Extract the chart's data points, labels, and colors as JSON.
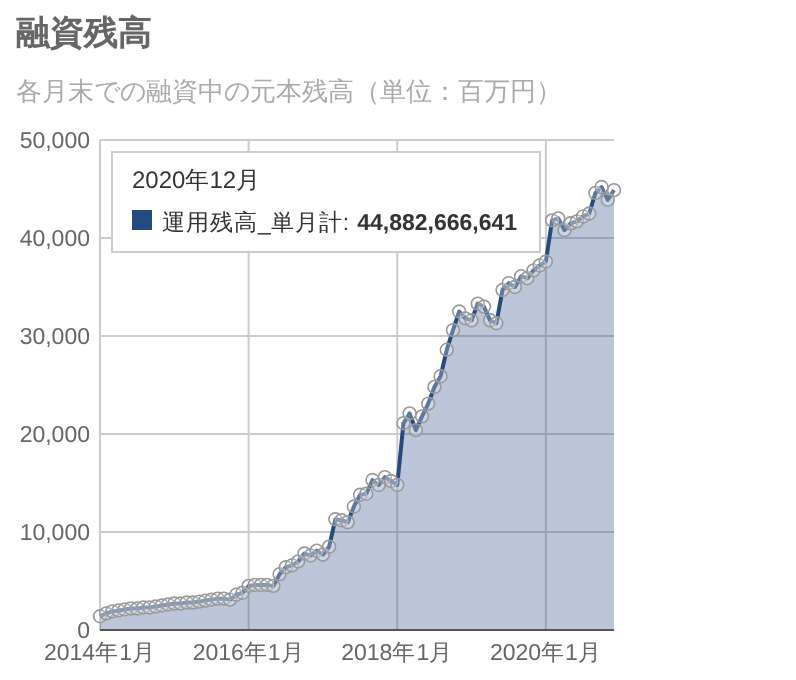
{
  "chart_data": {
    "type": "area",
    "title": "融資残高",
    "subtitle": "各月末での融資中の元本残高（単位：百万円）",
    "x": [
      "2014-01",
      "2014-02",
      "2014-03",
      "2014-04",
      "2014-05",
      "2014-06",
      "2014-07",
      "2014-08",
      "2014-09",
      "2014-10",
      "2014-11",
      "2014-12",
      "2015-01",
      "2015-02",
      "2015-03",
      "2015-04",
      "2015-05",
      "2015-06",
      "2015-07",
      "2015-08",
      "2015-09",
      "2015-10",
      "2015-11",
      "2015-12",
      "2016-01",
      "2016-02",
      "2016-03",
      "2016-04",
      "2016-05",
      "2016-06",
      "2016-07",
      "2016-08",
      "2016-09",
      "2016-10",
      "2016-11",
      "2016-12",
      "2017-01",
      "2017-02",
      "2017-03",
      "2017-04",
      "2017-05",
      "2017-06",
      "2017-07",
      "2017-08",
      "2017-09",
      "2017-10",
      "2017-11",
      "2017-12",
      "2018-01",
      "2018-02",
      "2018-03",
      "2018-04",
      "2018-05",
      "2018-06",
      "2018-07",
      "2018-08",
      "2018-09",
      "2018-10",
      "2018-11",
      "2018-12",
      "2019-01",
      "2019-02",
      "2019-03",
      "2019-04",
      "2019-05",
      "2019-06",
      "2019-07",
      "2019-08",
      "2019-09",
      "2019-10",
      "2019-11",
      "2019-12",
      "2020-01",
      "2020-02",
      "2020-03",
      "2020-04",
      "2020-05",
      "2020-06",
      "2020-07",
      "2020-08",
      "2020-09",
      "2020-10",
      "2020-11",
      "2020-12"
    ],
    "series": [
      {
        "name": "運用残高_単月計:",
        "color": "#234b80",
        "values": [
          1400,
          1700,
          1900,
          2000,
          2100,
          2200,
          2200,
          2300,
          2300,
          2400,
          2500,
          2600,
          2700,
          2700,
          2800,
          2800,
          2900,
          3000,
          3100,
          3200,
          3200,
          3100,
          3600,
          3800,
          4500,
          4600,
          4600,
          4600,
          4500,
          5700,
          6400,
          6600,
          7000,
          7800,
          7600,
          8100,
          7700,
          8500,
          11300,
          11200,
          11000,
          12600,
          13800,
          13900,
          15300,
          14800,
          15600,
          15200,
          14800,
          21100,
          22100,
          20400,
          21800,
          23100,
          24800,
          25900,
          28600,
          30600,
          32500,
          31800,
          31600,
          33300,
          33000,
          31600,
          31300,
          34700,
          35400,
          35000,
          36100,
          35900,
          36700,
          37200,
          37600,
          41800,
          42000,
          40800,
          41500,
          41700,
          42200,
          42500,
          44600,
          45200,
          43900,
          44883
        ]
      }
    ],
    "xlim": [
      "2014-01",
      "2020-12"
    ],
    "xticks": [
      {
        "value": "2014-01",
        "label": "2014年1月"
      },
      {
        "value": "2016-01",
        "label": "2016年1月"
      },
      {
        "value": "2018-01",
        "label": "2018年1月"
      },
      {
        "value": "2020-01",
        "label": "2020年1月"
      }
    ],
    "ylim": [
      0,
      50000
    ],
    "yticks": [
      0,
      {
        "value": 10000,
        "label": "10,000"
      },
      {
        "value": 20000,
        "label": "20,000"
      },
      {
        "value": 30000,
        "label": "30,000"
      },
      {
        "value": 40000,
        "label": "40,000"
      },
      {
        "value": 50000,
        "label": "50,000"
      }
    ],
    "grid": true,
    "marker": "circle",
    "legend": "top left",
    "annotations": [
      "2020年12月",
      "44,882,666,641"
    ]
  }
}
